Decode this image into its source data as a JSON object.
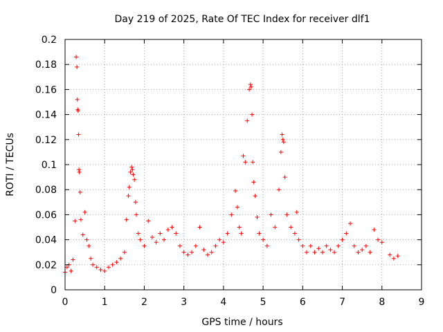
{
  "chart_data": {
    "type": "scatter",
    "title": "Day 219 of 2025, Rate Of TEC Index for receiver dlf1",
    "xlabel": "GPS time / hours",
    "ylabel": "ROTI / TECUs",
    "xlim": [
      0,
      9
    ],
    "ylim": [
      0,
      0.2
    ],
    "x_ticks": [
      "0",
      "1",
      "2",
      "3",
      "4",
      "5",
      "6",
      "7",
      "8",
      "9"
    ],
    "y_ticks": [
      "0",
      "0.02",
      "0.04",
      "0.06",
      "0.08",
      "0.1",
      "0.12",
      "0.14",
      "0.16",
      "0.18",
      "0.2"
    ],
    "grid": true,
    "marker": "+",
    "point_color": "#ff0000",
    "series": [
      {
        "name": "ROTI",
        "x": [
          0.0,
          0.05,
          0.1,
          0.15,
          0.2,
          0.25,
          0.28,
          0.3,
          0.31,
          0.32,
          0.33,
          0.34,
          0.35,
          0.36,
          0.38,
          0.4,
          0.45,
          0.5,
          0.55,
          0.6,
          0.65,
          0.7,
          0.8,
          0.9,
          1.0,
          1.1,
          1.2,
          1.3,
          1.4,
          1.5,
          1.55,
          1.6,
          1.62,
          1.65,
          1.68,
          1.7,
          1.72,
          1.75,
          1.78,
          1.8,
          1.85,
          1.9,
          2.0,
          2.1,
          2.2,
          2.3,
          2.4,
          2.5,
          2.6,
          2.7,
          2.8,
          2.9,
          3.0,
          3.1,
          3.2,
          3.3,
          3.4,
          3.5,
          3.6,
          3.7,
          3.8,
          3.9,
          4.0,
          4.1,
          4.2,
          4.3,
          4.35,
          4.4,
          4.45,
          4.5,
          4.55,
          4.6,
          4.65,
          4.68,
          4.7,
          4.72,
          4.74,
          4.76,
          4.8,
          4.85,
          4.9,
          5.0,
          5.1,
          5.2,
          5.3,
          5.4,
          5.45,
          5.48,
          5.5,
          5.52,
          5.55,
          5.6,
          5.7,
          5.8,
          5.85,
          5.9,
          6.0,
          6.1,
          6.2,
          6.3,
          6.4,
          6.5,
          6.6,
          6.7,
          6.8,
          6.9,
          7.0,
          7.1,
          7.2,
          7.3,
          7.4,
          7.5,
          7.6,
          7.7,
          7.8,
          7.9,
          8.0,
          8.2,
          8.3,
          8.4
        ],
        "y": [
          0.014,
          0.018,
          0.02,
          0.015,
          0.024,
          0.055,
          0.186,
          0.178,
          0.152,
          0.144,
          0.143,
          0.124,
          0.096,
          0.094,
          0.078,
          0.056,
          0.044,
          0.062,
          0.04,
          0.035,
          0.025,
          0.02,
          0.018,
          0.016,
          0.015,
          0.018,
          0.02,
          0.022,
          0.025,
          0.03,
          0.056,
          0.075,
          0.082,
          0.094,
          0.098,
          0.096,
          0.092,
          0.088,
          0.07,
          0.06,
          0.045,
          0.04,
          0.035,
          0.055,
          0.042,
          0.038,
          0.045,
          0.04,
          0.048,
          0.05,
          0.045,
          0.035,
          0.03,
          0.028,
          0.03,
          0.035,
          0.05,
          0.032,
          0.028,
          0.03,
          0.035,
          0.04,
          0.038,
          0.045,
          0.06,
          0.079,
          0.066,
          0.05,
          0.045,
          0.107,
          0.102,
          0.135,
          0.16,
          0.164,
          0.162,
          0.14,
          0.102,
          0.086,
          0.075,
          0.058,
          0.045,
          0.04,
          0.035,
          0.06,
          0.05,
          0.08,
          0.11,
          0.124,
          0.12,
          0.118,
          0.09,
          0.06,
          0.05,
          0.045,
          0.062,
          0.04,
          0.035,
          0.03,
          0.035,
          0.03,
          0.033,
          0.03,
          0.035,
          0.032,
          0.03,
          0.035,
          0.04,
          0.045,
          0.053,
          0.035,
          0.03,
          0.032,
          0.035,
          0.03,
          0.048,
          0.04,
          0.038,
          0.028,
          0.025,
          0.027
        ]
      }
    ]
  }
}
